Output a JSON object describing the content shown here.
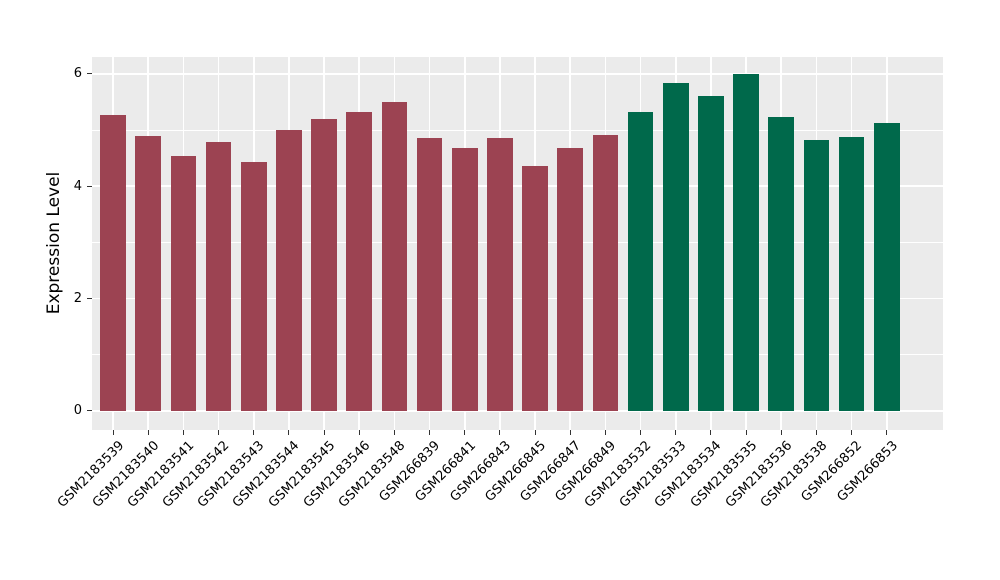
{
  "chart_data": {
    "type": "bar",
    "title": "",
    "xlabel": "",
    "ylabel": "Expression Level",
    "ylim": [
      0,
      6.3
    ],
    "yticks": [
      0,
      2,
      4,
      6
    ],
    "grid": true,
    "legend_position": "none",
    "panel_bg": "#EBEBEB",
    "grid_color": "#FFFFFF",
    "categories": [
      "GSM2183539",
      "GSM2183540",
      "GSM2183541",
      "GSM2183542",
      "GSM2183543",
      "GSM2183544",
      "GSM2183545",
      "GSM2183546",
      "GSM2183548",
      "GSM266839",
      "GSM266841",
      "GSM266843",
      "GSM266845",
      "GSM266847",
      "GSM266849",
      "GSM2183532",
      "GSM2183533",
      "GSM2183534",
      "GSM2183535",
      "GSM2183536",
      "GSM2183538",
      "GSM266852",
      "GSM266853"
    ],
    "values": [
      5.27,
      4.9,
      4.53,
      4.78,
      4.43,
      5.0,
      5.2,
      5.32,
      5.5,
      4.86,
      4.68,
      4.86,
      4.36,
      4.68,
      4.91,
      5.32,
      5.83,
      5.61,
      6.0,
      5.23,
      4.83,
      4.87,
      5.12
    ],
    "groups": [
      "group1",
      "group1",
      "group1",
      "group1",
      "group1",
      "group1",
      "group1",
      "group1",
      "group1",
      "group1",
      "group1",
      "group1",
      "group1",
      "group1",
      "group1",
      "group2",
      "group2",
      "group2",
      "group2",
      "group2",
      "group2",
      "group2",
      "group2"
    ],
    "group_colors": {
      "group1": "#9C4352",
      "group2": "#00694B"
    }
  }
}
